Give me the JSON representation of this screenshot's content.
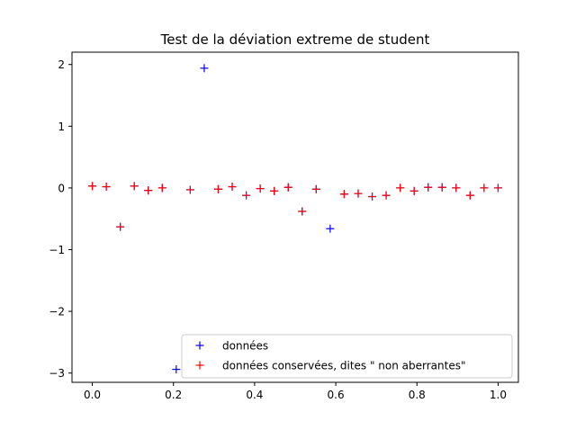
{
  "chart_data": {
    "type": "scatter",
    "title": "Test de la déviation extreme de student",
    "xlabel": "",
    "ylabel": "",
    "xlim": [
      -0.05,
      1.05
    ],
    "ylim": [
      -3.15,
      2.2
    ],
    "xticks": [
      0.0,
      0.2,
      0.4,
      0.6,
      0.8,
      1.0
    ],
    "xtick_labels": [
      "0.0",
      "0.2",
      "0.4",
      "0.6",
      "0.8",
      "1.0"
    ],
    "yticks": [
      -3,
      -2,
      -1,
      0,
      1,
      2
    ],
    "ytick_labels": [
      "−3",
      "−2",
      "−1",
      "0",
      "1",
      "2"
    ],
    "legend_position": "lower-right",
    "series": [
      {
        "name": "données",
        "color": "#0000ff",
        "marker": "+",
        "x": [
          0.0,
          0.0345,
          0.069,
          0.1034,
          0.1379,
          0.1724,
          0.2069,
          0.2414,
          0.2759,
          0.3103,
          0.3448,
          0.3793,
          0.4138,
          0.4483,
          0.4828,
          0.5172,
          0.5517,
          0.5862,
          0.6207,
          0.6552,
          0.6897,
          0.7241,
          0.7586,
          0.7931,
          0.8276,
          0.8621,
          0.8966,
          0.931,
          0.9655,
          1.0
        ],
        "y": [
          0.03,
          0.02,
          -0.63,
          0.03,
          -0.04,
          0.0,
          -2.94,
          -0.03,
          1.94,
          -0.02,
          0.02,
          -0.12,
          -0.01,
          -0.05,
          0.01,
          -0.38,
          -0.02,
          -0.66,
          -0.1,
          -0.09,
          -0.14,
          -0.12,
          0.0,
          -0.05,
          0.01,
          0.01,
          0.0,
          -0.12,
          0.0,
          0.0
        ]
      },
      {
        "name": "données conservées, dites \" non aberrantes\"",
        "color": "#ff0000",
        "marker": "+",
        "x": [
          0.0,
          0.0345,
          0.069,
          0.1034,
          0.1379,
          0.1724,
          0.2414,
          0.3103,
          0.3448,
          0.3793,
          0.4138,
          0.4483,
          0.4828,
          0.5172,
          0.5517,
          0.6207,
          0.6552,
          0.6897,
          0.7241,
          0.7586,
          0.7931,
          0.8276,
          0.8621,
          0.8966,
          0.931,
          0.9655,
          1.0
        ],
        "y": [
          0.03,
          0.02,
          -0.63,
          0.03,
          -0.04,
          0.0,
          -0.03,
          -0.02,
          0.02,
          -0.12,
          -0.01,
          -0.05,
          0.01,
          -0.38,
          -0.02,
          -0.1,
          -0.09,
          -0.14,
          -0.12,
          0.0,
          -0.05,
          0.01,
          0.01,
          0.0,
          -0.12,
          0.0,
          0.0
        ]
      }
    ]
  }
}
